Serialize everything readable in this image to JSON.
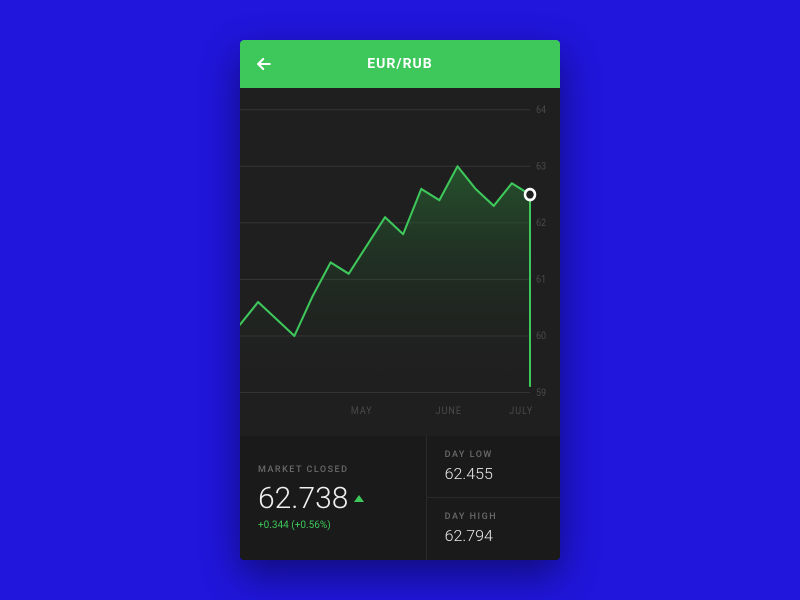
{
  "page": {
    "background_color": "#2016dc"
  },
  "card": {
    "background_color": "#1f1f1f",
    "border_radius": 4
  },
  "header": {
    "background_color": "#3ec85b",
    "title": "EUR/RUB",
    "title_color": "#ffffff",
    "title_fontsize": 14,
    "back_icon_color": "#ffffff"
  },
  "chart": {
    "type": "area",
    "x_labels": [
      "MAY",
      "JUNE",
      "JULY"
    ],
    "y_labels": [
      "64",
      "63",
      "62",
      "61",
      "60",
      "59"
    ],
    "y_min": 59,
    "y_max": 64,
    "grid_color": "#333333",
    "label_color": "#4a4a4a",
    "line_color": "#3ec85b",
    "area_gradient_top": "#2a7a37",
    "area_gradient_bottom": "#1f1f1f",
    "marker_stroke": "#ffffff",
    "marker_fill": "#1f1f1f",
    "data_points": [
      60.2,
      60.6,
      60.3,
      60.0,
      60.7,
      61.3,
      61.1,
      61.6,
      62.1,
      61.8,
      62.6,
      62.4,
      63.0,
      62.6,
      62.3,
      62.7,
      62.5
    ],
    "drop_to": 59.1
  },
  "stats": {
    "main": {
      "label": "MARKET CLOSED",
      "value": "62.738",
      "direction": "up",
      "change": "+0.344 (+0.56%)",
      "change_color": "#3ec85b"
    },
    "low": {
      "label": "DAY LOW",
      "value": "62.455"
    },
    "high": {
      "label": "DAY HIGH",
      "value": "62.794"
    },
    "label_color": "#6a6a6a",
    "value_color": "#e8e8e8"
  }
}
